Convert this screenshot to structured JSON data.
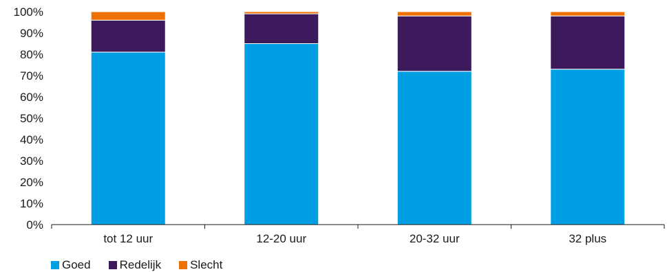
{
  "chart_data": {
    "type": "bar",
    "stacked": true,
    "categories": [
      "tot 12 uur",
      "12-20 uur",
      "20-32 uur",
      "32 plus"
    ],
    "series": [
      {
        "name": "Goed",
        "color": "#009FE3",
        "values": [
          81,
          85,
          72,
          73
        ]
      },
      {
        "name": "Redelijk",
        "color": "#3D1A5B",
        "values": [
          15,
          14,
          26,
          25
        ]
      },
      {
        "name": "Slecht",
        "color": "#EE7203",
        "values": [
          4,
          1,
          2,
          2
        ]
      }
    ],
    "y_ticks": [
      "0%",
      "10%",
      "20%",
      "30%",
      "40%",
      "50%",
      "60%",
      "70%",
      "80%",
      "90%",
      "100%"
    ],
    "ylim": [
      0,
      100
    ],
    "grid": false,
    "legend_position": "bottom-left"
  }
}
